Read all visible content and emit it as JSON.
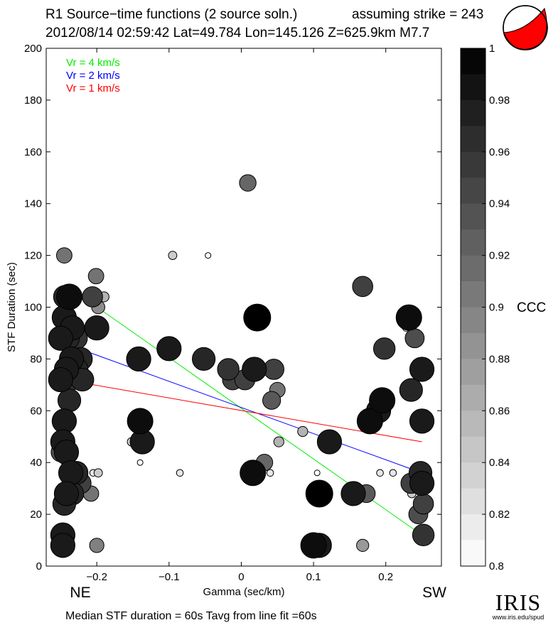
{
  "header": {
    "line1": "R1 Source−time functions (2 source soln.)",
    "strike_text": "assuming strike = 243",
    "line2": "2012/08/14 02:59:42  Lat=49.784 Lon=145.126  Z=625.9km  M7.7"
  },
  "footer": {
    "summary": "Median STF duration = 60s    Tavg from line fit =60s"
  },
  "logo": {
    "name": "IRIS",
    "url": "www.iris.edu/spud"
  },
  "chart_data": {
    "type": "scatter",
    "xlabel": "Gamma (sec/km)",
    "ylabel": "STF Duration (sec)",
    "xlim": [
      -0.27,
      0.277
    ],
    "ylim": [
      0,
      200
    ],
    "xticks": [
      -0.2,
      -0.1,
      0,
      0.1,
      0.2
    ],
    "xtick_labels": [
      "−0.2",
      "−0.1",
      "0",
      "0.1",
      "0.2"
    ],
    "yticks": [
      0,
      20,
      40,
      60,
      80,
      100,
      120,
      140,
      160,
      180,
      200
    ],
    "direction_labels": {
      "left": "NE",
      "right": "SW"
    },
    "legend": [
      {
        "label": "Vr = 4 km/s",
        "color": "#00ee00"
      },
      {
        "label": "Vr = 2 km/s",
        "color": "#0000ff"
      },
      {
        "label": "Vr = 1 km/s",
        "color": "#ff0000"
      }
    ],
    "lines": [
      {
        "color": "#00ee00",
        "x": [
          -0.225,
          0.25
        ],
        "y": [
          105,
          12
        ]
      },
      {
        "color": "#0000ff",
        "x": [
          -0.225,
          0.25
        ],
        "y": [
          84,
          36
        ]
      },
      {
        "color": "#ff0000",
        "x": [
          -0.225,
          0.25
        ],
        "y": [
          71,
          48
        ]
      }
    ],
    "points": [
      {
        "x": -0.245,
        "y": 120,
        "c": 0.91
      },
      {
        "x": -0.244,
        "y": 104,
        "c": 0.97
      },
      {
        "x": -0.238,
        "y": 104,
        "c": 0.99
      },
      {
        "x": -0.245,
        "y": 96,
        "c": 0.98
      },
      {
        "x": -0.234,
        "y": 92,
        "c": 0.98
      },
      {
        "x": -0.25,
        "y": 88,
        "c": 0.98
      },
      {
        "x": -0.24,
        "y": 88,
        "c": 0.97
      },
      {
        "x": -0.228,
        "y": 88,
        "c": 0.96
      },
      {
        "x": -0.235,
        "y": 80,
        "c": 0.98
      },
      {
        "x": -0.222,
        "y": 80,
        "c": 0.97
      },
      {
        "x": -0.242,
        "y": 76,
        "c": 0.98
      },
      {
        "x": -0.228,
        "y": 76,
        "c": 0.97
      },
      {
        "x": -0.25,
        "y": 72,
        "c": 0.98
      },
      {
        "x": -0.236,
        "y": 72,
        "c": 0.96
      },
      {
        "x": -0.22,
        "y": 72,
        "c": 0.97
      },
      {
        "x": -0.238,
        "y": 64,
        "c": 0.97
      },
      {
        "x": -0.245,
        "y": 56,
        "c": 0.98
      },
      {
        "x": -0.247,
        "y": 48,
        "c": 0.98
      },
      {
        "x": -0.25,
        "y": 44,
        "c": 0.94
      },
      {
        "x": -0.242,
        "y": 44,
        "c": 0.98
      },
      {
        "x": -0.236,
        "y": 36,
        "c": 0.98
      },
      {
        "x": -0.228,
        "y": 36,
        "c": 0.97
      },
      {
        "x": -0.242,
        "y": 28,
        "c": 0.98
      },
      {
        "x": -0.234,
        "y": 28,
        "c": 0.97
      },
      {
        "x": -0.222,
        "y": 32,
        "c": 0.95
      },
      {
        "x": -0.245,
        "y": 24,
        "c": 0.97
      },
      {
        "x": -0.247,
        "y": 12,
        "c": 0.98
      },
      {
        "x": -0.247,
        "y": 8,
        "c": 0.98
      },
      {
        "x": -0.201,
        "y": 112,
        "c": 0.91
      },
      {
        "x": -0.206,
        "y": 104,
        "c": 0.95
      },
      {
        "x": -0.19,
        "y": 104,
        "c": 0.86
      },
      {
        "x": -0.198,
        "y": 100,
        "c": 0.89
      },
      {
        "x": -0.2,
        "y": 92,
        "c": 0.98
      },
      {
        "x": -0.208,
        "y": 28,
        "c": 0.91
      },
      {
        "x": -0.198,
        "y": 36,
        "c": 0.84
      },
      {
        "x": -0.2,
        "y": 8,
        "c": 0.9
      },
      {
        "x": -0.205,
        "y": 36,
        "c": 0.82
      },
      {
        "x": -0.245,
        "y": 40,
        "c": 0.8
      },
      {
        "x": -0.228,
        "y": 36,
        "c": 0.8
      },
      {
        "x": -0.095,
        "y": 120,
        "c": 0.84
      },
      {
        "x": -0.046,
        "y": 120,
        "c": 0.8
      },
      {
        "x": -0.14,
        "y": 56,
        "c": 0.99
      },
      {
        "x": -0.137,
        "y": 48,
        "c": 0.98
      },
      {
        "x": -0.142,
        "y": 80,
        "c": 0.98
      },
      {
        "x": -0.1,
        "y": 84,
        "c": 0.98
      },
      {
        "x": -0.052,
        "y": 80,
        "c": 0.97
      },
      {
        "x": -0.152,
        "y": 48,
        "c": 0.84
      },
      {
        "x": -0.14,
        "y": 40,
        "c": 0.8
      },
      {
        "x": -0.085,
        "y": 36,
        "c": 0.82
      },
      {
        "x": 0.009,
        "y": 148,
        "c": 0.92
      },
      {
        "x": 0.022,
        "y": 96,
        "c": 1.0
      },
      {
        "x": -0.018,
        "y": 76,
        "c": 0.96
      },
      {
        "x": 0.018,
        "y": 76,
        "c": 0.98
      },
      {
        "x": -0.012,
        "y": 72,
        "c": 0.95
      },
      {
        "x": 0.005,
        "y": 72,
        "c": 0.95
      },
      {
        "x": 0.045,
        "y": 76,
        "c": 0.95
      },
      {
        "x": 0.05,
        "y": 68,
        "c": 0.91
      },
      {
        "x": 0.042,
        "y": 64,
        "c": 0.93
      },
      {
        "x": 0.052,
        "y": 48,
        "c": 0.86
      },
      {
        "x": 0.085,
        "y": 52,
        "c": 0.86
      },
      {
        "x": 0.032,
        "y": 40,
        "c": 0.92
      },
      {
        "x": 0.016,
        "y": 36,
        "c": 0.99
      },
      {
        "x": 0.04,
        "y": 36,
        "c": 0.82
      },
      {
        "x": 0.105,
        "y": 36,
        "c": 0.8
      },
      {
        "x": 0.122,
        "y": 48,
        "c": 0.98
      },
      {
        "x": 0.108,
        "y": 28,
        "c": 1.0
      },
      {
        "x": 0.1,
        "y": 8,
        "c": 0.99
      },
      {
        "x": 0.108,
        "y": 8,
        "c": 0.98
      },
      {
        "x": 0.155,
        "y": 28,
        "c": 0.98
      },
      {
        "x": 0.173,
        "y": 28,
        "c": 0.93
      },
      {
        "x": 0.168,
        "y": 108,
        "c": 0.95
      },
      {
        "x": 0.168,
        "y": 8,
        "c": 0.88
      },
      {
        "x": 0.178,
        "y": 56,
        "c": 0.99
      },
      {
        "x": 0.19,
        "y": 60,
        "c": 0.98
      },
      {
        "x": 0.195,
        "y": 64,
        "c": 0.99
      },
      {
        "x": 0.198,
        "y": 84,
        "c": 0.96
      },
      {
        "x": 0.192,
        "y": 36,
        "c": 0.82
      },
      {
        "x": 0.21,
        "y": 36,
        "c": 0.82
      },
      {
        "x": 0.232,
        "y": 96,
        "c": 0.99
      },
      {
        "x": 0.228,
        "y": 92,
        "c": 0.82
      },
      {
        "x": 0.24,
        "y": 88,
        "c": 0.94
      },
      {
        "x": 0.25,
        "y": 76,
        "c": 0.98
      },
      {
        "x": 0.235,
        "y": 68,
        "c": 0.97
      },
      {
        "x": 0.25,
        "y": 56,
        "c": 0.98
      },
      {
        "x": 0.238,
        "y": 36,
        "c": 0.84
      },
      {
        "x": 0.248,
        "y": 36,
        "c": 0.97
      },
      {
        "x": 0.248,
        "y": 36,
        "c": 0.8
      },
      {
        "x": 0.235,
        "y": 32,
        "c": 0.95
      },
      {
        "x": 0.25,
        "y": 32,
        "c": 0.98
      },
      {
        "x": 0.236,
        "y": 28,
        "c": 0.84
      },
      {
        "x": 0.245,
        "y": 20,
        "c": 0.94
      },
      {
        "x": 0.252,
        "y": 24,
        "c": 0.95
      },
      {
        "x": 0.252,
        "y": 12,
        "c": 0.96
      }
    ],
    "colorbar": {
      "label": "CCC",
      "min": 0.8,
      "max": 1,
      "ticks": [
        1,
        0.98,
        0.96,
        0.94,
        0.92,
        0.9,
        0.88,
        0.86,
        0.84,
        0.82,
        0.8
      ],
      "tick_labels": [
        "1",
        "0.98",
        "0.96",
        "0.94",
        "0.92",
        "0.9",
        "0.88",
        "0.86",
        "0.84",
        "0.82",
        "0.8"
      ]
    }
  }
}
